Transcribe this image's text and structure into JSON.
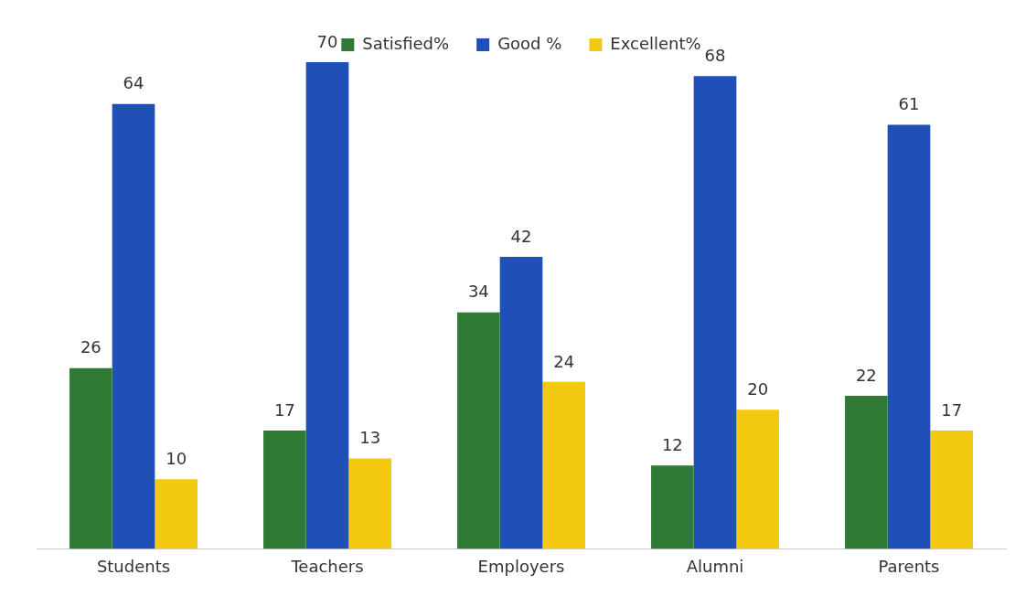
{
  "chart_data": {
    "type": "bar",
    "categories": [
      "Students",
      "Teachers",
      "Employers",
      "Alumni",
      "Parents"
    ],
    "series": [
      {
        "name": "Satisfied%",
        "color": "#2f7a34",
        "values": [
          26,
          17,
          34,
          12,
          22
        ]
      },
      {
        "name": "Good %",
        "color": "#1f50b8",
        "values": [
          64,
          70,
          42,
          68,
          61
        ]
      },
      {
        "name": "Excellent%",
        "color": "#f2c811",
        "values": [
          10,
          13,
          24,
          20,
          17
        ]
      }
    ],
    "data_labels": true,
    "legend": "top",
    "grid": false
  }
}
